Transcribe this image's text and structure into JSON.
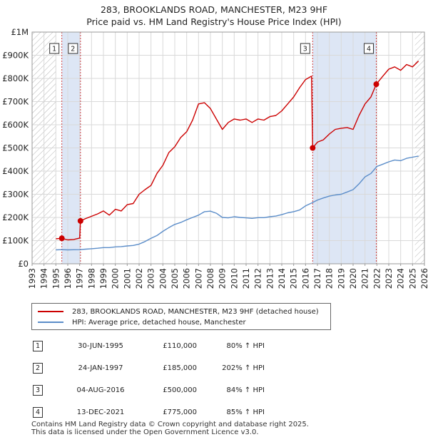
{
  "header": {
    "line1": "283, BROOKLANDS ROAD, MANCHESTER, M23 9HF",
    "line2": "Price paid vs. HM Land Registry's House Price Index (HPI)"
  },
  "legend": {
    "property": "283, BROOKLANDS ROAD, MANCHESTER, M23 9HF (detached house)",
    "hpi": "HPI: Average price, detached house, Manchester"
  },
  "transactions": [
    {
      "num": "1",
      "date": "30-JUN-1995",
      "price": "£110,000",
      "hpi": "80% ↑ HPI"
    },
    {
      "num": "2",
      "date": "24-JAN-1997",
      "price": "£185,000",
      "hpi": "202% ↑ HPI"
    },
    {
      "num": "3",
      "date": "04-AUG-2016",
      "price": "£500,000",
      "hpi": "84% ↑ HPI"
    },
    {
      "num": "4",
      "date": "13-DEC-2021",
      "price": "£775,000",
      "hpi": "85% ↑ HPI"
    }
  ],
  "footer": {
    "line1": "Contains HM Land Registry data © Crown copyright and database right 2025.",
    "line2": "This data is licensed under the Open Government Licence v3.0."
  },
  "colors": {
    "property": "#cc0000",
    "hpi": "#5b8dc9",
    "shade": "#dde6f5",
    "grid": "#d9d9d9"
  },
  "chart_data": {
    "type": "line",
    "title": "283, BROOKLANDS ROAD, MANCHESTER, M23 9HF",
    "subtitle": "Price paid vs. HM Land Registry's House Price Index (HPI)",
    "xlim": [
      1993,
      2026
    ],
    "ylim": [
      0,
      1000000
    ],
    "x_ticks": [
      1993,
      1994,
      1995,
      1996,
      1997,
      1998,
      1999,
      2000,
      2001,
      2002,
      2003,
      2004,
      2005,
      2006,
      2007,
      2008,
      2009,
      2010,
      2011,
      2012,
      2013,
      2014,
      2015,
      2016,
      2017,
      2018,
      2019,
      2020,
      2021,
      2022,
      2023,
      2024,
      2025,
      2026
    ],
    "y_ticks": [
      {
        "value": 0,
        "label": "£0"
      },
      {
        "value": 100000,
        "label": "£100K"
      },
      {
        "value": 200000,
        "label": "£200K"
      },
      {
        "value": 300000,
        "label": "£300K"
      },
      {
        "value": 400000,
        "label": "£400K"
      },
      {
        "value": 500000,
        "label": "£500K"
      },
      {
        "value": 600000,
        "label": "£600K"
      },
      {
        "value": 700000,
        "label": "£700K"
      },
      {
        "value": 800000,
        "label": "£800K"
      },
      {
        "value": 900000,
        "label": "£900K"
      },
      {
        "value": 1000000,
        "label": "£1M"
      }
    ],
    "shaded_periods": [
      [
        1995.5,
        1997.07
      ],
      [
        2016.6,
        2021.95
      ]
    ],
    "hatched_regions": [
      [
        1993,
        1995
      ],
      [
        2025.2,
        2026
      ]
    ],
    "sales": [
      {
        "label": "1",
        "x": 1995.5,
        "y": 110000
      },
      {
        "label": "2",
        "x": 1997.07,
        "y": 185000
      },
      {
        "label": "3",
        "x": 2016.6,
        "y": 500000
      },
      {
        "label": "4",
        "x": 2021.95,
        "y": 775000
      }
    ],
    "series": [
      {
        "name": "283, BROOKLANDS ROAD, MANCHESTER, M23 9HF (detached house)",
        "color": "#cc0000",
        "x": [
          1995.0,
          1995.5,
          1996.0,
          1996.5,
          1997.0,
          1997.07,
          1997.5,
          1998.0,
          1998.5,
          1999.0,
          1999.5,
          2000.0,
          2000.5,
          2001.0,
          2001.5,
          2002.0,
          2002.5,
          2003.0,
          2003.5,
          2004.0,
          2004.5,
          2005.0,
          2005.5,
          2006.0,
          2006.5,
          2007.0,
          2007.5,
          2008.0,
          2008.5,
          2009.0,
          2009.5,
          2010.0,
          2010.5,
          2011.0,
          2011.5,
          2012.0,
          2012.5,
          2013.0,
          2013.5,
          2014.0,
          2014.5,
          2015.0,
          2015.5,
          2016.0,
          2016.5,
          2016.6,
          2017.0,
          2017.5,
          2018.0,
          2018.5,
          2019.0,
          2019.5,
          2020.0,
          2020.5,
          2021.0,
          2021.5,
          2021.95,
          2022.5,
          2023.0,
          2023.5,
          2024.0,
          2024.5,
          2025.0,
          2025.5
        ],
        "y": [
          108000,
          110000,
          103000,
          105000,
          111000,
          185000,
          195000,
          205000,
          215000,
          228000,
          210000,
          235000,
          228000,
          255000,
          260000,
          300000,
          320000,
          338000,
          390000,
          425000,
          480000,
          505000,
          545000,
          570000,
          620000,
          690000,
          695000,
          670000,
          625000,
          580000,
          610000,
          625000,
          620000,
          625000,
          610000,
          625000,
          620000,
          635000,
          640000,
          660000,
          690000,
          720000,
          760000,
          795000,
          810000,
          500000,
          525000,
          535000,
          560000,
          580000,
          585000,
          588000,
          580000,
          640000,
          690000,
          720000,
          775000,
          810000,
          840000,
          850000,
          835000,
          860000,
          850000,
          875000
        ]
      },
      {
        "name": "HPI: Average price, detached house, Manchester",
        "color": "#5b8dc9",
        "x": [
          1995.0,
          1995.5,
          1996.0,
          1996.5,
          1997.0,
          1997.5,
          1998.0,
          1998.5,
          1999.0,
          1999.5,
          2000.0,
          2000.5,
          2001.0,
          2001.5,
          2002.0,
          2002.5,
          2003.0,
          2003.5,
          2004.0,
          2004.5,
          2005.0,
          2005.5,
          2006.0,
          2006.5,
          2007.0,
          2007.5,
          2008.0,
          2008.5,
          2009.0,
          2009.5,
          2010.0,
          2010.5,
          2011.0,
          2011.5,
          2012.0,
          2012.5,
          2013.0,
          2013.5,
          2014.0,
          2014.5,
          2015.0,
          2015.5,
          2016.0,
          2016.5,
          2017.0,
          2017.5,
          2018.0,
          2018.5,
          2019.0,
          2019.5,
          2020.0,
          2020.5,
          2021.0,
          2021.5,
          2022.0,
          2022.5,
          2023.0,
          2023.5,
          2024.0,
          2024.5,
          2025.0,
          2025.5
        ],
        "y": [
          60000,
          61000,
          60000,
          60500,
          61000,
          63000,
          65000,
          67000,
          70000,
          70000,
          73000,
          74000,
          77000,
          79000,
          85000,
          96000,
          110000,
          122000,
          140000,
          156000,
          170000,
          178000,
          190000,
          200000,
          210000,
          225000,
          227000,
          218000,
          200000,
          198000,
          203000,
          200000,
          198000,
          196000,
          199000,
          199000,
          203000,
          206000,
          212000,
          220000,
          225000,
          232000,
          250000,
          262000,
          275000,
          284000,
          292000,
          297000,
          300000,
          310000,
          320000,
          345000,
          375000,
          390000,
          420000,
          430000,
          440000,
          448000,
          445000,
          455000,
          460000,
          465000
        ]
      }
    ]
  }
}
